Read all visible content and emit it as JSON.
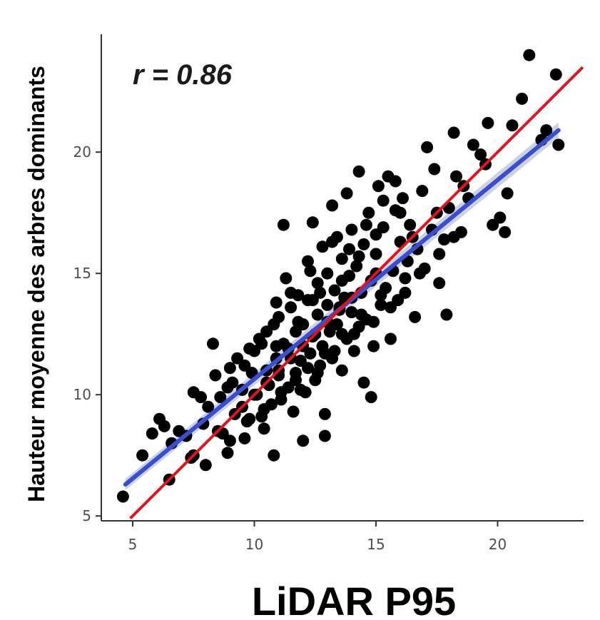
{
  "chart_data": {
    "type": "scatter",
    "xlabel": "LiDAR P95",
    "ylabel": "Hauteur moyenne des arbres dominants",
    "annotation": "r = 0.86",
    "xlim": [
      4,
      23.5
    ],
    "ylim": [
      4.8,
      25
    ],
    "xticks": [
      5,
      10,
      15,
      20
    ],
    "yticks": [
      5,
      10,
      15,
      20
    ],
    "grid": false,
    "colors": {
      "points": "#000000",
      "regression": "#3a4fd0",
      "ci_band": "#aeb4c8",
      "identity": "#e0141c",
      "axis": "#333333"
    },
    "lines": {
      "regression": {
        "x": [
          4.7,
          22.5
        ],
        "y": [
          6.3,
          20.9
        ]
      },
      "identity": {
        "x": [
          4.9,
          23.5
        ],
        "y": [
          4.9,
          23.5
        ]
      }
    },
    "points": [
      [
        4.6,
        5.8
      ],
      [
        5.4,
        7.5
      ],
      [
        5.8,
        8.4
      ],
      [
        6.1,
        9.0
      ],
      [
        6.3,
        8.7
      ],
      [
        6.6,
        8.0
      ],
      [
        6.9,
        8.5
      ],
      [
        7.2,
        8.3
      ],
      [
        7.4,
        7.4
      ],
      [
        7.5,
        10.1
      ],
      [
        7.8,
        9.9
      ],
      [
        7.9,
        8.8
      ],
      [
        8.0,
        7.1
      ],
      [
        8.1,
        9.5
      ],
      [
        8.3,
        12.1
      ],
      [
        8.4,
        10.8
      ],
      [
        8.6,
        9.9
      ],
      [
        8.7,
        8.4
      ],
      [
        8.9,
        7.6
      ],
      [
        9.0,
        11.1
      ],
      [
        9.1,
        10.5
      ],
      [
        9.2,
        9.2
      ],
      [
        9.3,
        11.5
      ],
      [
        9.5,
        10.2
      ],
      [
        9.6,
        8.2
      ],
      [
        9.8,
        9.0
      ],
      [
        9.9,
        10.9
      ],
      [
        10.0,
        11.8
      ],
      [
        10.1,
        10.0
      ],
      [
        10.2,
        12.3
      ],
      [
        10.3,
        9.1
      ],
      [
        10.4,
        8.6
      ],
      [
        10.5,
        11.0
      ],
      [
        10.5,
        12.6
      ],
      [
        10.6,
        10.4
      ],
      [
        10.7,
        9.6
      ],
      [
        10.8,
        12.9
      ],
      [
        10.8,
        7.5
      ],
      [
        10.9,
        11.5
      ],
      [
        11.0,
        10.8
      ],
      [
        11.0,
        13.2
      ],
      [
        11.1,
        9.8
      ],
      [
        11.2,
        12.1
      ],
      [
        11.2,
        17.0
      ],
      [
        11.3,
        14.8
      ],
      [
        11.4,
        10.3
      ],
      [
        11.4,
        11.9
      ],
      [
        11.5,
        13.6
      ],
      [
        11.6,
        9.3
      ],
      [
        11.7,
        12.6
      ],
      [
        11.7,
        10.9
      ],
      [
        11.8,
        14.1
      ],
      [
        11.9,
        11.4
      ],
      [
        12.0,
        8.1
      ],
      [
        12.0,
        12.9
      ],
      [
        12.1,
        10.1
      ],
      [
        12.2,
        13.9
      ],
      [
        12.2,
        15.5
      ],
      [
        12.3,
        11.7
      ],
      [
        12.4,
        12.4
      ],
      [
        12.4,
        17.1
      ],
      [
        12.5,
        10.6
      ],
      [
        12.6,
        13.3
      ],
      [
        12.6,
        14.6
      ],
      [
        12.7,
        11.2
      ],
      [
        12.8,
        12.0
      ],
      [
        12.8,
        16.1
      ],
      [
        12.9,
        8.3
      ],
      [
        12.9,
        9.2
      ],
      [
        13.0,
        13.7
      ],
      [
        13.0,
        15.0
      ],
      [
        13.1,
        12.6
      ],
      [
        13.2,
        11.5
      ],
      [
        13.2,
        17.8
      ],
      [
        13.3,
        14.3
      ],
      [
        13.4,
        12.9
      ],
      [
        13.4,
        16.5
      ],
      [
        13.5,
        13.6
      ],
      [
        13.6,
        11.0
      ],
      [
        13.6,
        15.6
      ],
      [
        13.7,
        14.0
      ],
      [
        13.8,
        12.3
      ],
      [
        13.8,
        18.3
      ],
      [
        13.9,
        14.9
      ],
      [
        14.0,
        13.4
      ],
      [
        14.0,
        16.8
      ],
      [
        14.1,
        11.8
      ],
      [
        14.2,
        15.3
      ],
      [
        14.3,
        19.2
      ],
      [
        14.3,
        12.8
      ],
      [
        14.4,
        14.2
      ],
      [
        14.5,
        10.5
      ],
      [
        14.5,
        16.2
      ],
      [
        14.6,
        13.1
      ],
      [
        14.7,
        17.5
      ],
      [
        14.8,
        14.7
      ],
      [
        14.8,
        9.9
      ],
      [
        14.9,
        12.0
      ],
      [
        15.0,
        15.8
      ],
      [
        15.1,
        18.6
      ],
      [
        15.2,
        13.7
      ],
      [
        15.3,
        16.9
      ],
      [
        15.4,
        14.4
      ],
      [
        15.5,
        19.0
      ],
      [
        15.6,
        12.3
      ],
      [
        15.7,
        15.1
      ],
      [
        15.8,
        17.6
      ],
      [
        15.9,
        13.9
      ],
      [
        16.0,
        16.3
      ],
      [
        16.1,
        18.1
      ],
      [
        16.2,
        14.8
      ],
      [
        16.3,
        15.5
      ],
      [
        16.4,
        17.0
      ],
      [
        16.6,
        13.2
      ],
      [
        16.7,
        16.0
      ],
      [
        16.9,
        18.4
      ],
      [
        17.0,
        15.2
      ],
      [
        17.1,
        20.2
      ],
      [
        17.3,
        16.8
      ],
      [
        17.4,
        19.3
      ],
      [
        17.6,
        14.6
      ],
      [
        17.8,
        16.4
      ],
      [
        17.9,
        13.3
      ],
      [
        18.0,
        17.7
      ],
      [
        18.2,
        20.8
      ],
      [
        18.3,
        19.0
      ],
      [
        18.5,
        16.7
      ],
      [
        18.8,
        18.1
      ],
      [
        19.0,
        20.3
      ],
      [
        19.3,
        19.9
      ],
      [
        19.6,
        21.2
      ],
      [
        19.8,
        17.0
      ],
      [
        20.1,
        17.3
      ],
      [
        20.3,
        16.7
      ],
      [
        20.4,
        18.3
      ],
      [
        20.6,
        21.1
      ],
      [
        21.0,
        22.2
      ],
      [
        21.3,
        24.0
      ],
      [
        21.8,
        20.5
      ],
      [
        22.0,
        20.9
      ],
      [
        22.4,
        23.2
      ],
      [
        22.5,
        20.3
      ],
      [
        19.5,
        19.5
      ],
      [
        18.6,
        18.6
      ],
      [
        17.5,
        17.5
      ],
      [
        16.5,
        16.5
      ],
      [
        13.5,
        13.5
      ],
      [
        12.5,
        12.5
      ],
      [
        11.5,
        11.5
      ],
      [
        10.5,
        10.5
      ],
      [
        9.5,
        9.5
      ],
      [
        8.5,
        8.5
      ],
      [
        7.5,
        7.5
      ],
      [
        6.5,
        6.5
      ],
      [
        14.0,
        14.0
      ],
      [
        15.0,
        15.0
      ],
      [
        11.0,
        11.0
      ],
      [
        10.0,
        10.0
      ],
      [
        12.0,
        12.0
      ],
      [
        13.0,
        13.0
      ],
      [
        9.8,
        11.9
      ],
      [
        10.9,
        13.8
      ],
      [
        11.5,
        14.2
      ],
      [
        12.3,
        15.1
      ],
      [
        12.7,
        14.2
      ],
      [
        13.2,
        16.3
      ],
      [
        13.9,
        16.0
      ],
      [
        14.6,
        17.0
      ],
      [
        15.3,
        18.0
      ],
      [
        15.8,
        18.8
      ],
      [
        11.9,
        10.2
      ],
      [
        12.6,
        10.9
      ],
      [
        13.3,
        11.8
      ],
      [
        14.1,
        12.5
      ],
      [
        14.9,
        13.0
      ],
      [
        15.6,
        13.6
      ],
      [
        16.2,
        14.2
      ],
      [
        16.8,
        15.0
      ],
      [
        17.6,
        15.8
      ],
      [
        18.2,
        16.5
      ],
      [
        8.9,
        10.3
      ],
      [
        9.6,
        11.2
      ],
      [
        10.3,
        12.1
      ],
      [
        10.9,
        12.0
      ],
      [
        11.8,
        13.0
      ],
      [
        12.4,
        13.9
      ],
      [
        13.6,
        14.7
      ],
      [
        14.3,
        15.7
      ],
      [
        15.0,
        16.6
      ],
      [
        16.0,
        17.5
      ],
      [
        9.0,
        8.1
      ],
      [
        9.7,
        8.9
      ],
      [
        10.4,
        9.4
      ],
      [
        11.1,
        10.1
      ],
      [
        11.7,
        10.6
      ],
      [
        12.2,
        11.1
      ],
      [
        12.9,
        11.7
      ],
      [
        13.6,
        12.5
      ],
      [
        14.4,
        13.3
      ],
      [
        15.2,
        14.1
      ]
    ]
  }
}
